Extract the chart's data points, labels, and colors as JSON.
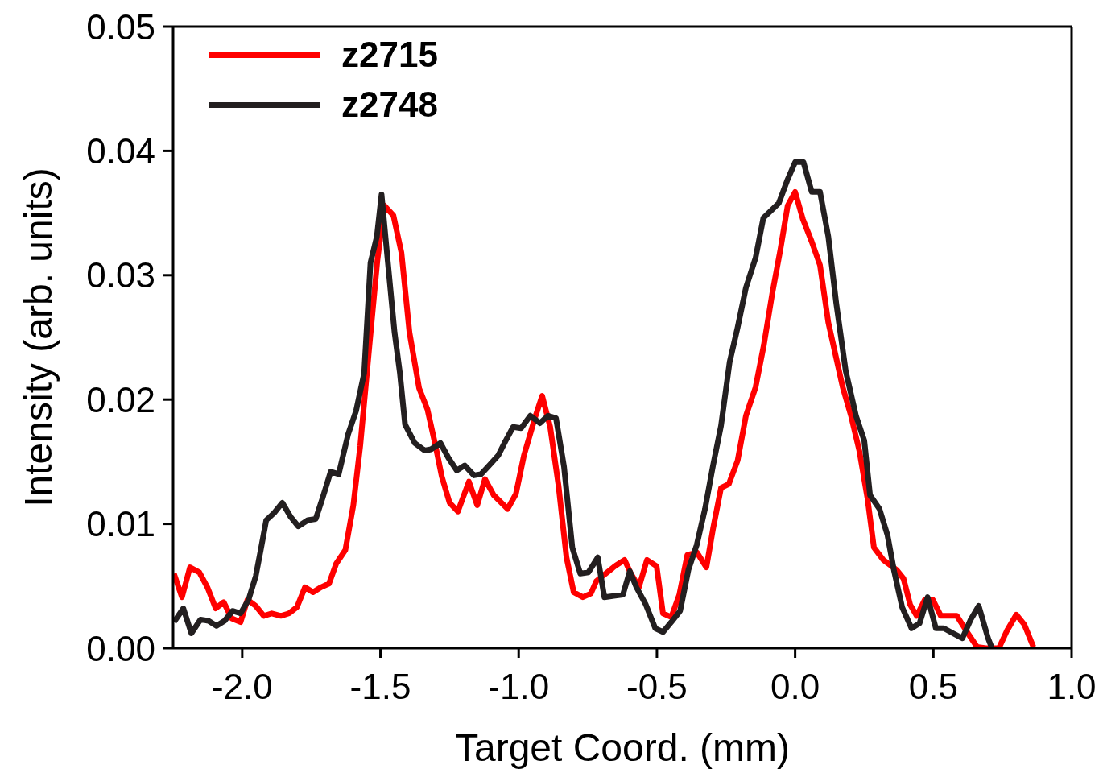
{
  "chart_data": {
    "type": "line",
    "xlabel": "Target Coord. (mm)",
    "ylabel": "Intensity (arb. units)",
    "xlim": [
      -2.25,
      1.0
    ],
    "ylim": [
      0,
      0.05
    ],
    "xticks": [
      {
        "value": -2,
        "label": "-2.0"
      },
      {
        "value": -1.5,
        "label": "-1.5"
      },
      {
        "value": -1,
        "label": "-1.0"
      },
      {
        "value": -0.5,
        "label": "-0.5"
      },
      {
        "value": 0,
        "label": "0.0"
      },
      {
        "value": 0.5,
        "label": "0.5"
      },
      {
        "value": 1,
        "label": "1.0"
      }
    ],
    "yticks": [
      {
        "value": 0,
        "label": "0.00"
      },
      {
        "value": 0.01,
        "label": "0.01"
      },
      {
        "value": 0.02,
        "label": "0.02"
      },
      {
        "value": 0.03,
        "label": "0.03"
      },
      {
        "value": 0.04,
        "label": "0.04"
      },
      {
        "value": 0.05,
        "label": "0.05"
      }
    ],
    "grid": false,
    "legend": "top left",
    "series": [
      {
        "name": "z2715",
        "color": "#ff0000",
        "x": [
          -2.247,
          -2.218,
          -2.189,
          -2.155,
          -2.126,
          -2.096,
          -2.067,
          -2.038,
          -2.006,
          -1.981,
          -1.951,
          -1.922,
          -1.893,
          -1.86,
          -1.831,
          -1.802,
          -1.773,
          -1.744,
          -1.715,
          -1.686,
          -1.66,
          -1.627,
          -1.598,
          -1.573,
          -1.54,
          -1.511,
          -1.486,
          -1.453,
          -1.424,
          -1.395,
          -1.36,
          -1.33,
          -1.301,
          -1.278,
          -1.25,
          -1.22,
          -1.18,
          -1.15,
          -1.122,
          -1.09,
          -1.04,
          -1.01,
          -0.981,
          -0.943,
          -0.915,
          -0.886,
          -0.856,
          -0.827,
          -0.801,
          -0.768,
          -0.739,
          -0.719,
          -0.685,
          -0.652,
          -0.617,
          -0.594,
          -0.565,
          -0.536,
          -0.501,
          -0.478,
          -0.448,
          -0.419,
          -0.39,
          -0.355,
          -0.321,
          -0.297,
          -0.268,
          -0.24,
          -0.208,
          -0.178,
          -0.143,
          -0.113,
          -0.083,
          -0.053,
          -0.027,
          0.0,
          0.028,
          0.06,
          0.09,
          0.12,
          0.149,
          0.172,
          0.202,
          0.232,
          0.262,
          0.285,
          0.319,
          0.367,
          0.392,
          0.416,
          0.44,
          0.469,
          0.498,
          0.527,
          0.585,
          0.625,
          0.658,
          0.69,
          0.737,
          0.766,
          0.8,
          0.829,
          0.862
        ],
        "values": [
          0.006,
          0.0041,
          0.0065,
          0.0061,
          0.0049,
          0.0032,
          0.0037,
          0.0024,
          0.0021,
          0.0039,
          0.0034,
          0.0026,
          0.0028,
          0.0026,
          0.0028,
          0.0033,
          0.0049,
          0.0045,
          0.0049,
          0.0052,
          0.0068,
          0.0079,
          0.0115,
          0.0163,
          0.0243,
          0.0312,
          0.0356,
          0.0348,
          0.0318,
          0.0254,
          0.0209,
          0.0192,
          0.0163,
          0.0138,
          0.0117,
          0.011,
          0.0134,
          0.0115,
          0.0136,
          0.0123,
          0.0112,
          0.0124,
          0.0155,
          0.0184,
          0.0203,
          0.0178,
          0.0131,
          0.0073,
          0.0045,
          0.0041,
          0.0044,
          0.0054,
          0.006,
          0.0066,
          0.0071,
          0.006,
          0.0049,
          0.0071,
          0.0066,
          0.0028,
          0.0025,
          0.0043,
          0.0075,
          0.0077,
          0.0065,
          0.0096,
          0.0129,
          0.0132,
          0.0151,
          0.0187,
          0.021,
          0.0244,
          0.0285,
          0.0321,
          0.0356,
          0.0367,
          0.0345,
          0.0327,
          0.0308,
          0.0262,
          0.0233,
          0.021,
          0.0187,
          0.0159,
          0.012,
          0.0081,
          0.0071,
          0.0063,
          0.0056,
          0.0035,
          0.0026,
          0.0039,
          0.0039,
          0.0026,
          0.0026,
          0.0012,
          0.0001,
          0.0,
          0.0,
          0.0014,
          0.0027,
          0.0019,
          0.0001
        ]
      },
      {
        "name": "z2748",
        "color": "#231f20",
        "x": [
          -2.247,
          -2.213,
          -2.184,
          -2.151,
          -2.122,
          -2.093,
          -2.064,
          -2.035,
          -2.006,
          -1.977,
          -1.951,
          -1.933,
          -1.913,
          -1.884,
          -1.855,
          -1.826,
          -1.797,
          -1.763,
          -1.734,
          -1.709,
          -1.68,
          -1.651,
          -1.617,
          -1.588,
          -1.559,
          -1.536,
          -1.513,
          -1.496,
          -1.473,
          -1.449,
          -1.43,
          -1.411,
          -1.376,
          -1.34,
          -1.317,
          -1.283,
          -1.254,
          -1.224,
          -1.195,
          -1.162,
          -1.136,
          -1.107,
          -1.074,
          -1.049,
          -1.02,
          -0.991,
          -0.958,
          -0.923,
          -0.894,
          -0.865,
          -0.836,
          -0.806,
          -0.777,
          -0.748,
          -0.714,
          -0.69,
          -0.656,
          -0.623,
          -0.598,
          -0.574,
          -0.54,
          -0.506,
          -0.478,
          -0.448,
          -0.416,
          -0.386,
          -0.356,
          -0.326,
          -0.297,
          -0.268,
          -0.237,
          -0.208,
          -0.178,
          -0.143,
          -0.115,
          -0.059,
          -0.029,
          0.0,
          0.03,
          0.06,
          0.09,
          0.12,
          0.149,
          0.183,
          0.22,
          0.25,
          0.271,
          0.305,
          0.334,
          0.358,
          0.387,
          0.421,
          0.45,
          0.479,
          0.509,
          0.538,
          0.571,
          0.605,
          0.635,
          0.664,
          0.698,
          0.712
        ],
        "values": [
          0.0021,
          0.0032,
          0.0012,
          0.0023,
          0.0022,
          0.0018,
          0.0022,
          0.003,
          0.0028,
          0.0039,
          0.0058,
          0.0079,
          0.0103,
          0.0109,
          0.0117,
          0.0106,
          0.0098,
          0.0103,
          0.0104,
          0.0121,
          0.0142,
          0.014,
          0.0172,
          0.0191,
          0.0221,
          0.031,
          0.0331,
          0.0365,
          0.031,
          0.0254,
          0.0222,
          0.018,
          0.0165,
          0.0159,
          0.016,
          0.0165,
          0.0153,
          0.0143,
          0.0147,
          0.0139,
          0.014,
          0.0147,
          0.0155,
          0.0166,
          0.0178,
          0.0177,
          0.0187,
          0.0181,
          0.0187,
          0.0185,
          0.0146,
          0.0081,
          0.006,
          0.0061,
          0.0073,
          0.0041,
          0.0042,
          0.0043,
          0.0062,
          0.0049,
          0.0035,
          0.0016,
          0.0013,
          0.0021,
          0.003,
          0.0063,
          0.0083,
          0.0112,
          0.0147,
          0.0179,
          0.023,
          0.0258,
          0.029,
          0.0314,
          0.0346,
          0.0358,
          0.0376,
          0.0391,
          0.0391,
          0.0367,
          0.0367,
          0.0331,
          0.0277,
          0.0223,
          0.0187,
          0.0167,
          0.0123,
          0.0112,
          0.0091,
          0.0062,
          0.0033,
          0.0016,
          0.002,
          0.0041,
          0.0016,
          0.0016,
          0.0012,
          0.0008,
          0.0023,
          0.0034,
          0.0008,
          0.0
        ]
      }
    ]
  }
}
